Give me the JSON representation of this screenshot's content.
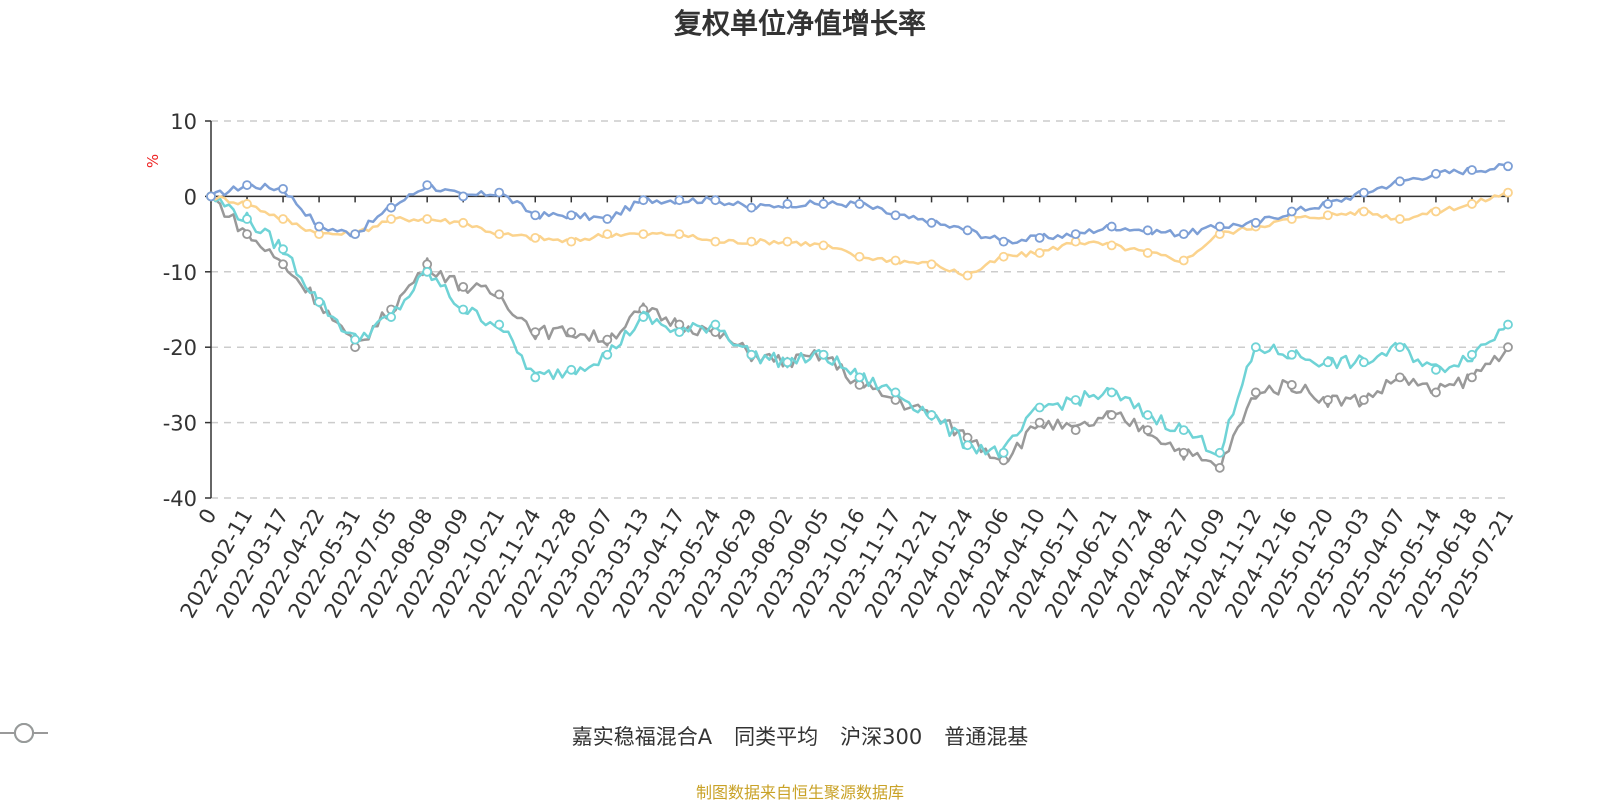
{
  "chart_data": {
    "type": "line",
    "title": "复权单位净值增长率",
    "ylabel": "%",
    "ylim": [
      -40,
      10
    ],
    "yticks": [
      10,
      0,
      -10,
      -20,
      -30,
      -40
    ],
    "x_tick_labels": [
      "0",
      "2022-02-11",
      "2022-03-17",
      "2022-04-22",
      "2022-05-31",
      "2022-07-05",
      "2022-08-08",
      "2022-09-09",
      "2022-10-21",
      "2022-11-24",
      "2022-12-28",
      "2023-02-07",
      "2023-03-13",
      "2023-04-17",
      "2023-05-24",
      "2023-06-29",
      "2023-08-02",
      "2023-09-05",
      "2023-10-16",
      "2023-11-17",
      "2023-12-21",
      "2024-01-24",
      "2024-03-06",
      "2024-04-10",
      "2024-05-17",
      "2024-06-21",
      "2024-07-24",
      "2024-08-27",
      "2024-10-09",
      "2024-11-12",
      "2024-12-16",
      "2025-01-20",
      "2025-03-03",
      "2025-04-07",
      "2025-05-14",
      "2025-06-18",
      "2025-07-21"
    ],
    "grid": true,
    "legend_position": "bottom",
    "series": [
      {
        "name": "嘉实稳福混合A",
        "color": "#7d9fd6",
        "values": [
          0,
          1.5,
          1,
          -4,
          -5,
          -1.5,
          1.5,
          0,
          0.5,
          -2.5,
          -2.5,
          -3,
          -0.5,
          -0.5,
          -0.5,
          -1.5,
          -1,
          -1,
          -1,
          -2.5,
          -3.5,
          -4.5,
          -6,
          -5.5,
          -5,
          -4,
          -4.5,
          -5,
          -4,
          -3.5,
          -2,
          -1,
          0.5,
          2,
          3,
          3.5,
          4
        ]
      },
      {
        "name": "同类平均",
        "color": "#fbd38d",
        "values": [
          0,
          -1,
          -3,
          -5,
          -5,
          -3,
          -3,
          -3.5,
          -5,
          -5.5,
          -6,
          -5,
          -5,
          -5,
          -6,
          -6,
          -6,
          -6.5,
          -8,
          -8.5,
          -9,
          -10.5,
          -8,
          -7.5,
          -6,
          -6.5,
          -7.5,
          -8.5,
          -5,
          -4,
          -3,
          -2.5,
          -2,
          -3,
          -2,
          -1,
          0.5
        ]
      },
      {
        "name": "沪深300",
        "color": "#6fd3d6",
        "values": [
          0,
          -3,
          -7,
          -14,
          -19,
          -16,
          -10,
          -15,
          -17,
          -24,
          -23,
          -21,
          -16,
          -18,
          -17,
          -21,
          -22,
          -21,
          -24,
          -26,
          -29,
          -33,
          -34,
          -28,
          -27,
          -26,
          -29,
          -31,
          -34,
          -20,
          -21,
          -22,
          -22,
          -20,
          -23,
          -21,
          -17
        ]
      },
      {
        "name": "普通混基",
        "color": "#999999",
        "values": [
          0,
          -5,
          -9,
          -14,
          -20,
          -15,
          -9,
          -12,
          -13,
          -18,
          -18,
          -19,
          -15,
          -17,
          -18,
          -21,
          -22,
          -21,
          -25,
          -27,
          -29,
          -32,
          -35,
          -30,
          -31,
          -29,
          -31,
          -34,
          -36,
          -26,
          -25,
          -27,
          -27,
          -24,
          -26,
          -24,
          -20
        ]
      }
    ]
  },
  "source_text": "制图数据来自恒生聚源数据库"
}
